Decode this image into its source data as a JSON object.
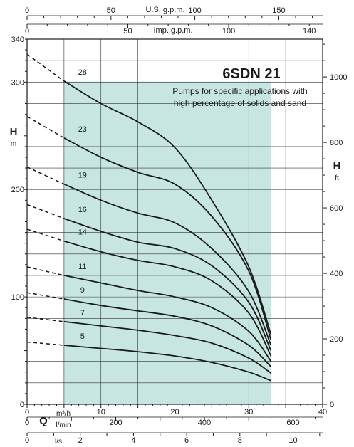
{
  "title": "6SDN 21",
  "subtitle_lines": [
    "Pumps for specific applications with",
    "high percentage of solids and sand"
  ],
  "axes": {
    "h_m_label": "H",
    "h_m_unit": "m",
    "h_ft_label": "H",
    "h_ft_unit": "ft",
    "q_label": "Q",
    "m3h_unit": "m³/h",
    "lmin_unit": "l/min",
    "ls_unit": "l/s",
    "usgpm_label": "U.S. g.p.m.",
    "impgpm_label": "Imp. g.p.m."
  },
  "chart_data": {
    "type": "line",
    "title": "6SDN 21",
    "xlabel": "Q (m³/h)",
    "ylabel": "H (m)",
    "xlim": [
      0,
      40
    ],
    "ylim": [
      0,
      340
    ],
    "grid": true,
    "operating_range_m3h": [
      5,
      33
    ],
    "left_ticks_m": [
      0,
      100,
      200,
      300,
      340
    ],
    "right_ticks_ft": [
      0,
      200,
      400,
      600,
      800,
      1000
    ],
    "bottom_ticks_m3h": [
      0,
      10,
      20,
      30,
      40
    ],
    "bottom_ticks_lmin": [
      0,
      200,
      400,
      600
    ],
    "bottom_ticks_ls": [
      0,
      2,
      4,
      6,
      8,
      10
    ],
    "top_ticks_usgpm": [
      0,
      50,
      100,
      150
    ],
    "top_ticks_impgpm": [
      0,
      50,
      100,
      140
    ],
    "series": [
      {
        "name": "28",
        "values": [
          [
            0,
            326
          ],
          [
            5,
            301
          ],
          [
            10,
            280
          ],
          [
            15,
            263
          ],
          [
            20,
            239
          ],
          [
            25,
            190
          ],
          [
            30,
            128
          ],
          [
            33,
            65
          ]
        ]
      },
      {
        "name": "23",
        "values": [
          [
            0,
            268
          ],
          [
            5,
            248
          ],
          [
            10,
            230
          ],
          [
            15,
            216
          ],
          [
            20,
            205
          ],
          [
            25,
            175
          ],
          [
            30,
            124
          ],
          [
            33,
            60
          ]
        ]
      },
      {
        "name": "19",
        "values": [
          [
            0,
            221
          ],
          [
            5,
            205
          ],
          [
            10,
            190
          ],
          [
            15,
            178
          ],
          [
            20,
            169
          ],
          [
            25,
            145
          ],
          [
            30,
            105
          ],
          [
            33,
            55
          ]
        ]
      },
      {
        "name": "16",
        "values": [
          [
            0,
            186
          ],
          [
            5,
            173
          ],
          [
            10,
            161
          ],
          [
            15,
            151
          ],
          [
            20,
            145
          ],
          [
            25,
            129
          ],
          [
            30,
            95
          ],
          [
            33,
            50
          ]
        ]
      },
      {
        "name": "14",
        "values": [
          [
            0,
            163
          ],
          [
            5,
            152
          ],
          [
            10,
            142
          ],
          [
            15,
            134
          ],
          [
            20,
            128
          ],
          [
            25,
            115
          ],
          [
            30,
            85
          ],
          [
            33,
            45
          ]
        ]
      },
      {
        "name": "11",
        "values": [
          [
            0,
            128
          ],
          [
            5,
            120
          ],
          [
            10,
            113
          ],
          [
            15,
            106
          ],
          [
            20,
            100
          ],
          [
            25,
            90
          ],
          [
            30,
            68
          ],
          [
            33,
            40
          ]
        ]
      },
      {
        "name": "9",
        "values": [
          [
            0,
            104
          ],
          [
            5,
            98
          ],
          [
            10,
            92
          ],
          [
            15,
            87
          ],
          [
            20,
            82
          ],
          [
            25,
            73
          ],
          [
            30,
            55
          ],
          [
            33,
            35
          ]
        ]
      },
      {
        "name": "7",
        "values": [
          [
            0,
            81
          ],
          [
            5,
            77
          ],
          [
            10,
            73
          ],
          [
            15,
            69
          ],
          [
            20,
            64
          ],
          [
            25,
            57
          ],
          [
            30,
            43
          ],
          [
            33,
            29
          ]
        ]
      },
      {
        "name": "5",
        "values": [
          [
            0,
            58
          ],
          [
            5,
            55
          ],
          [
            10,
            52
          ],
          [
            15,
            49
          ],
          [
            20,
            45
          ],
          [
            25,
            39
          ],
          [
            30,
            30
          ],
          [
            33,
            22
          ]
        ]
      }
    ]
  }
}
